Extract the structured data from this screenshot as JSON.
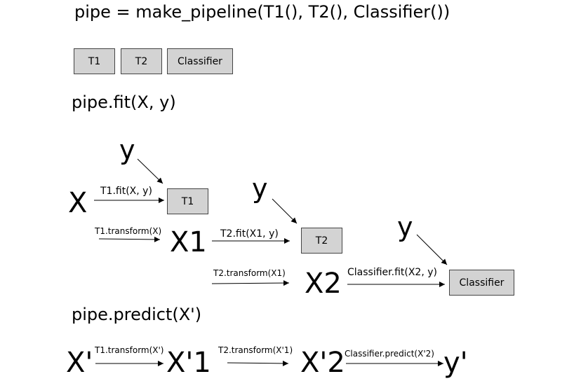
{
  "colors": {
    "box_fill": "#d3d3d3",
    "box_border": "#444444",
    "ink": "#000000"
  },
  "header": {
    "code": "pipe = make_pipeline(T1(), T2(), Classifier())",
    "steps": [
      "T1",
      "T2",
      "Classifier"
    ]
  },
  "fit": {
    "title": "pipe.fit(X, y)",
    "y_labels": [
      "y",
      "y",
      "y"
    ],
    "x_label": "X",
    "x1_label": "X1",
    "x2_label": "X2",
    "t1_fit": "T1.fit(X, y)",
    "t1_transform": "T1.transform(X)",
    "t2_fit": "T2.fit(X1, y)",
    "t2_transform": "T2.transform(X1)",
    "clf_fit": "Classifier.fit(X2, y)",
    "box_t1": "T1",
    "box_t2": "T2",
    "box_clf": "Classifier"
  },
  "predict": {
    "title": "pipe.predict(X')",
    "x_prime": "X'",
    "x_prime_1": "X'1",
    "x_prime_2": "X'2",
    "y_prime": "y'",
    "t1_transform": "T1.transform(X')",
    "t2_transform": "T2.transform(X'1)",
    "clf_predict": "Classifier.predict(X'2)"
  }
}
